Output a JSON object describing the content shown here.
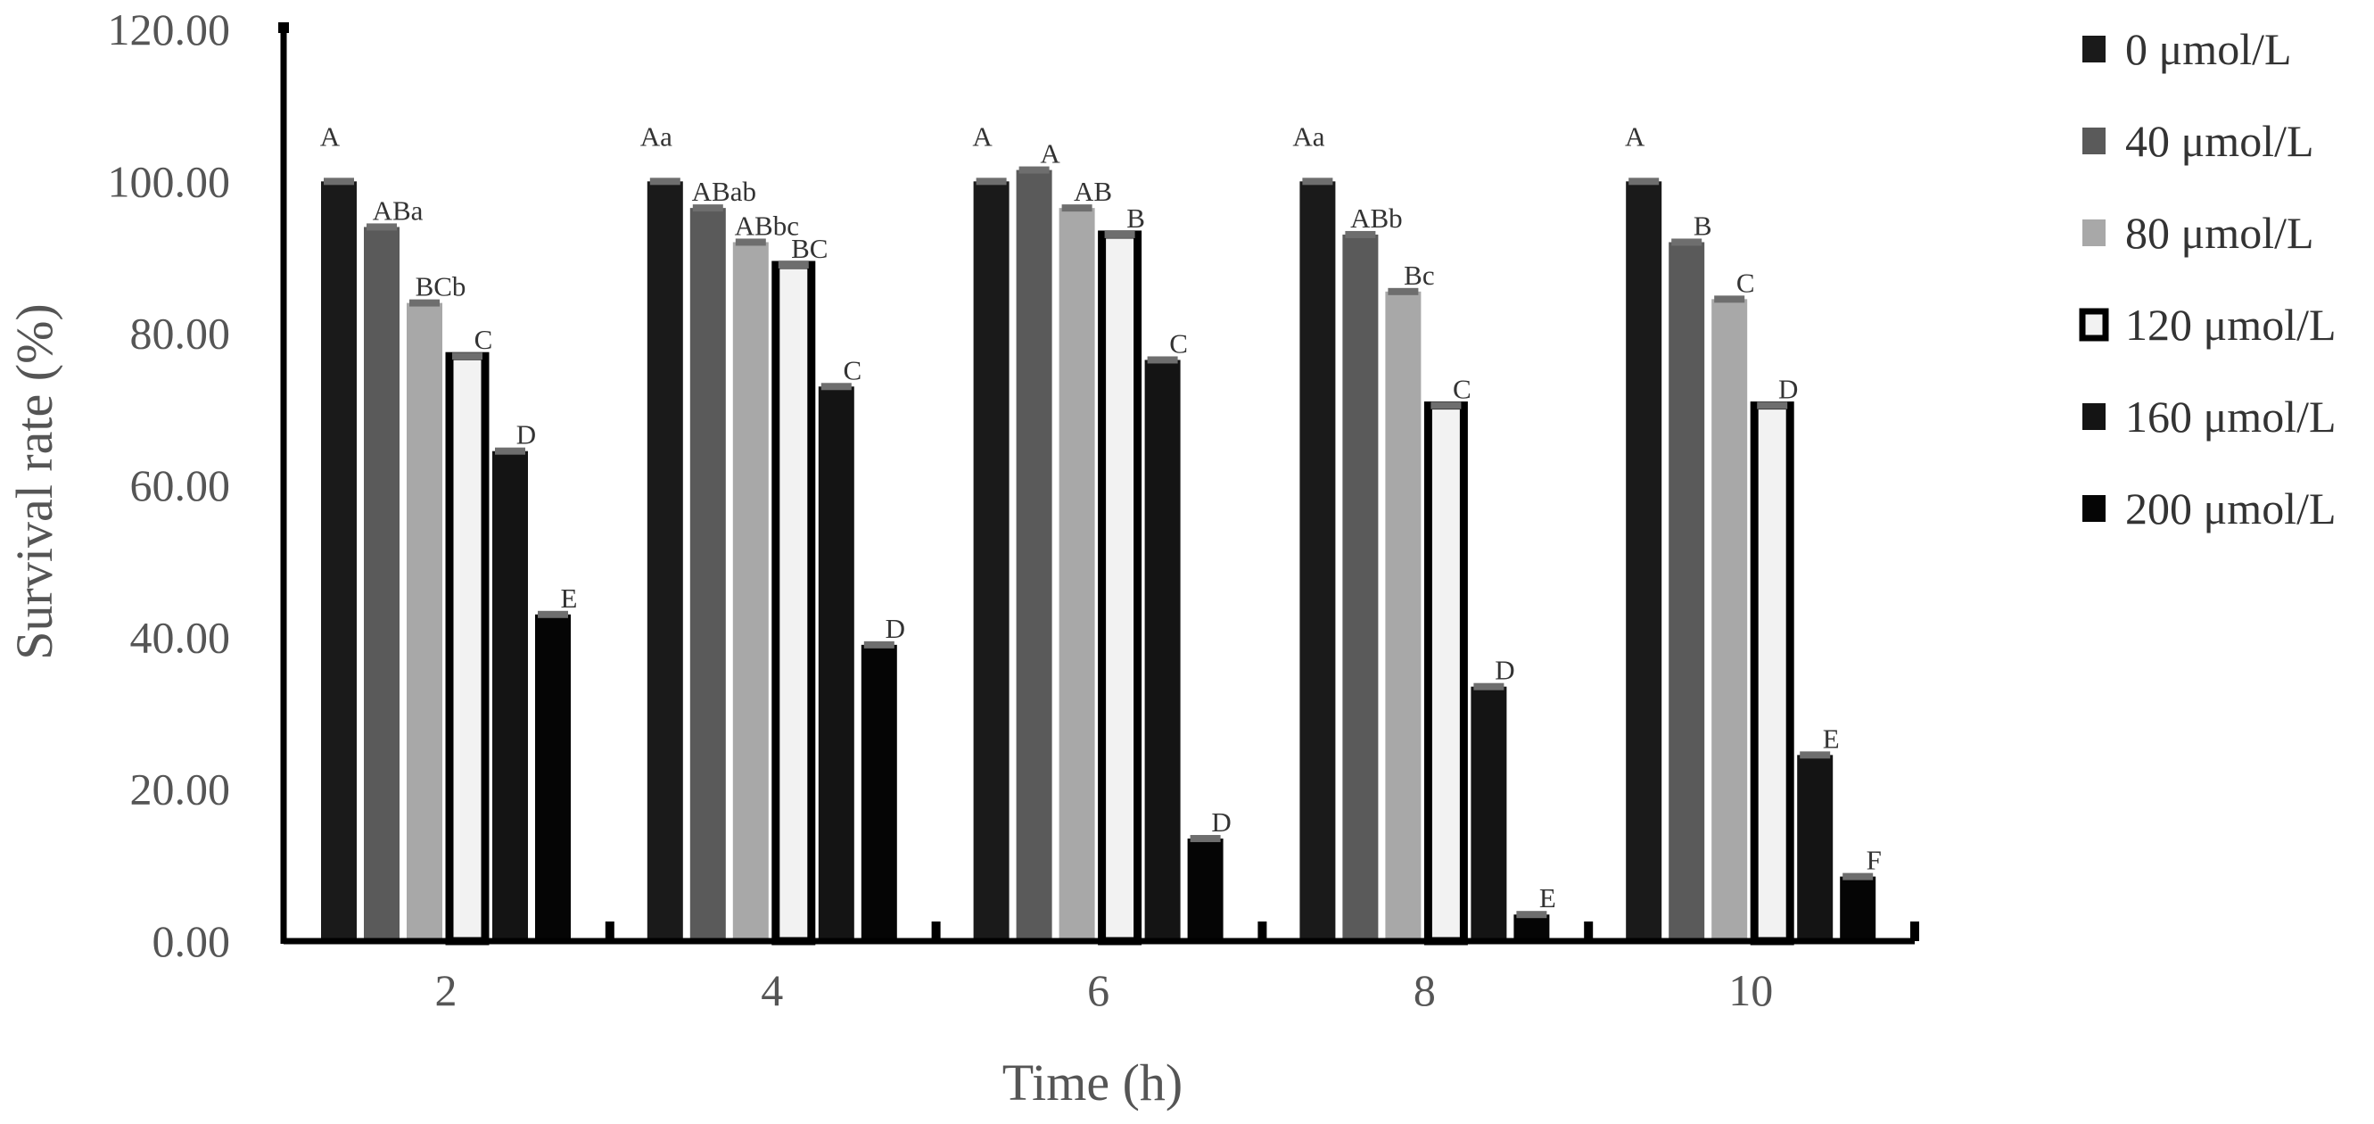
{
  "chart_data": {
    "type": "bar",
    "title": "",
    "xlabel": "Time (h)",
    "ylabel": "Survival rate (%)",
    "ylim": [
      0,
      120
    ],
    "yticks": [
      "0.00",
      "20.00",
      "40.00",
      "60.00",
      "80.00",
      "100.00",
      "120.00"
    ],
    "categories": [
      "2",
      "4",
      "6",
      "8",
      "10"
    ],
    "legend_position": "right",
    "series": [
      {
        "name": "0 μmol/L",
        "color": "#1a1a1a",
        "values": [
          100,
          100,
          100,
          100,
          100
        ],
        "labels": [
          "A",
          "Aa",
          "A",
          "Aa",
          "A"
        ]
      },
      {
        "name": "40 μmol/L",
        "color": "#5a5a5a",
        "values": [
          94,
          96.5,
          101.5,
          93,
          92
        ],
        "labels": [
          "ABa",
          "ABab",
          "A",
          "ABb",
          "B"
        ]
      },
      {
        "name": "80 μmol/L",
        "color": "#a8a8a8",
        "values": [
          84,
          92,
          96.5,
          85.5,
          84.5
        ],
        "labels": [
          "BCb",
          "ABbc",
          "AB",
          "Bc",
          "C"
        ]
      },
      {
        "name": "120 μmol/L",
        "color": "#f2f2f2",
        "values": [
          77,
          89,
          93,
          70.5,
          70.5
        ],
        "labels": [
          "C",
          "BC",
          "B",
          "C",
          "D"
        ]
      },
      {
        "name": "160 μmol/L",
        "color": "#141414",
        "values": [
          64.5,
          73,
          76.5,
          33.5,
          24.5
        ],
        "labels": [
          "D",
          "C",
          "C",
          "D",
          "E"
        ]
      },
      {
        "name": "200 μmol/L",
        "color": "#050505",
        "values": [
          43,
          39,
          13.5,
          3.5,
          8.5
        ],
        "labels": [
          "E",
          "D",
          "D",
          "E",
          "F"
        ]
      }
    ]
  }
}
